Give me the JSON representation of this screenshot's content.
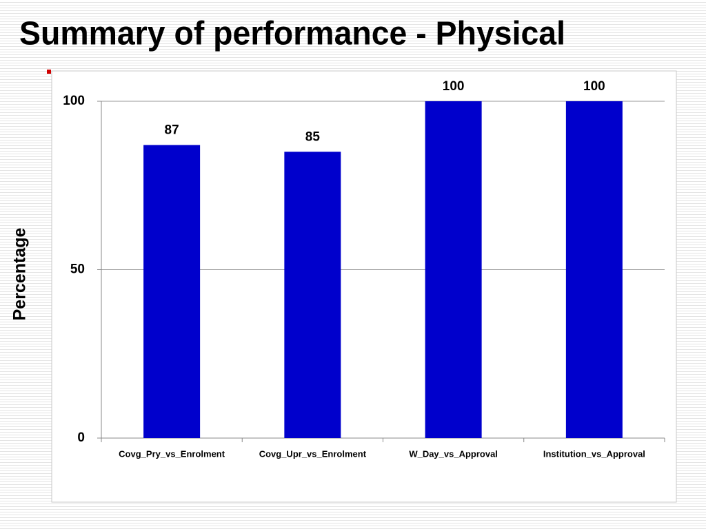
{
  "chart_data": {
    "type": "bar",
    "title": "Summary of performance - Physical",
    "y_label": "Percentage",
    "categories": [
      "Covg_Pry_vs_Enrolment",
      "Covg_Upr_vs_Enrolment",
      "W_Day_vs_Approval",
      "Institution_vs_Approval"
    ],
    "values": [
      87,
      85,
      100,
      100
    ],
    "color": "#0000cc",
    "ylim": [
      0,
      100
    ],
    "yticks": [
      0,
      50,
      100
    ],
    "grid": true
  }
}
